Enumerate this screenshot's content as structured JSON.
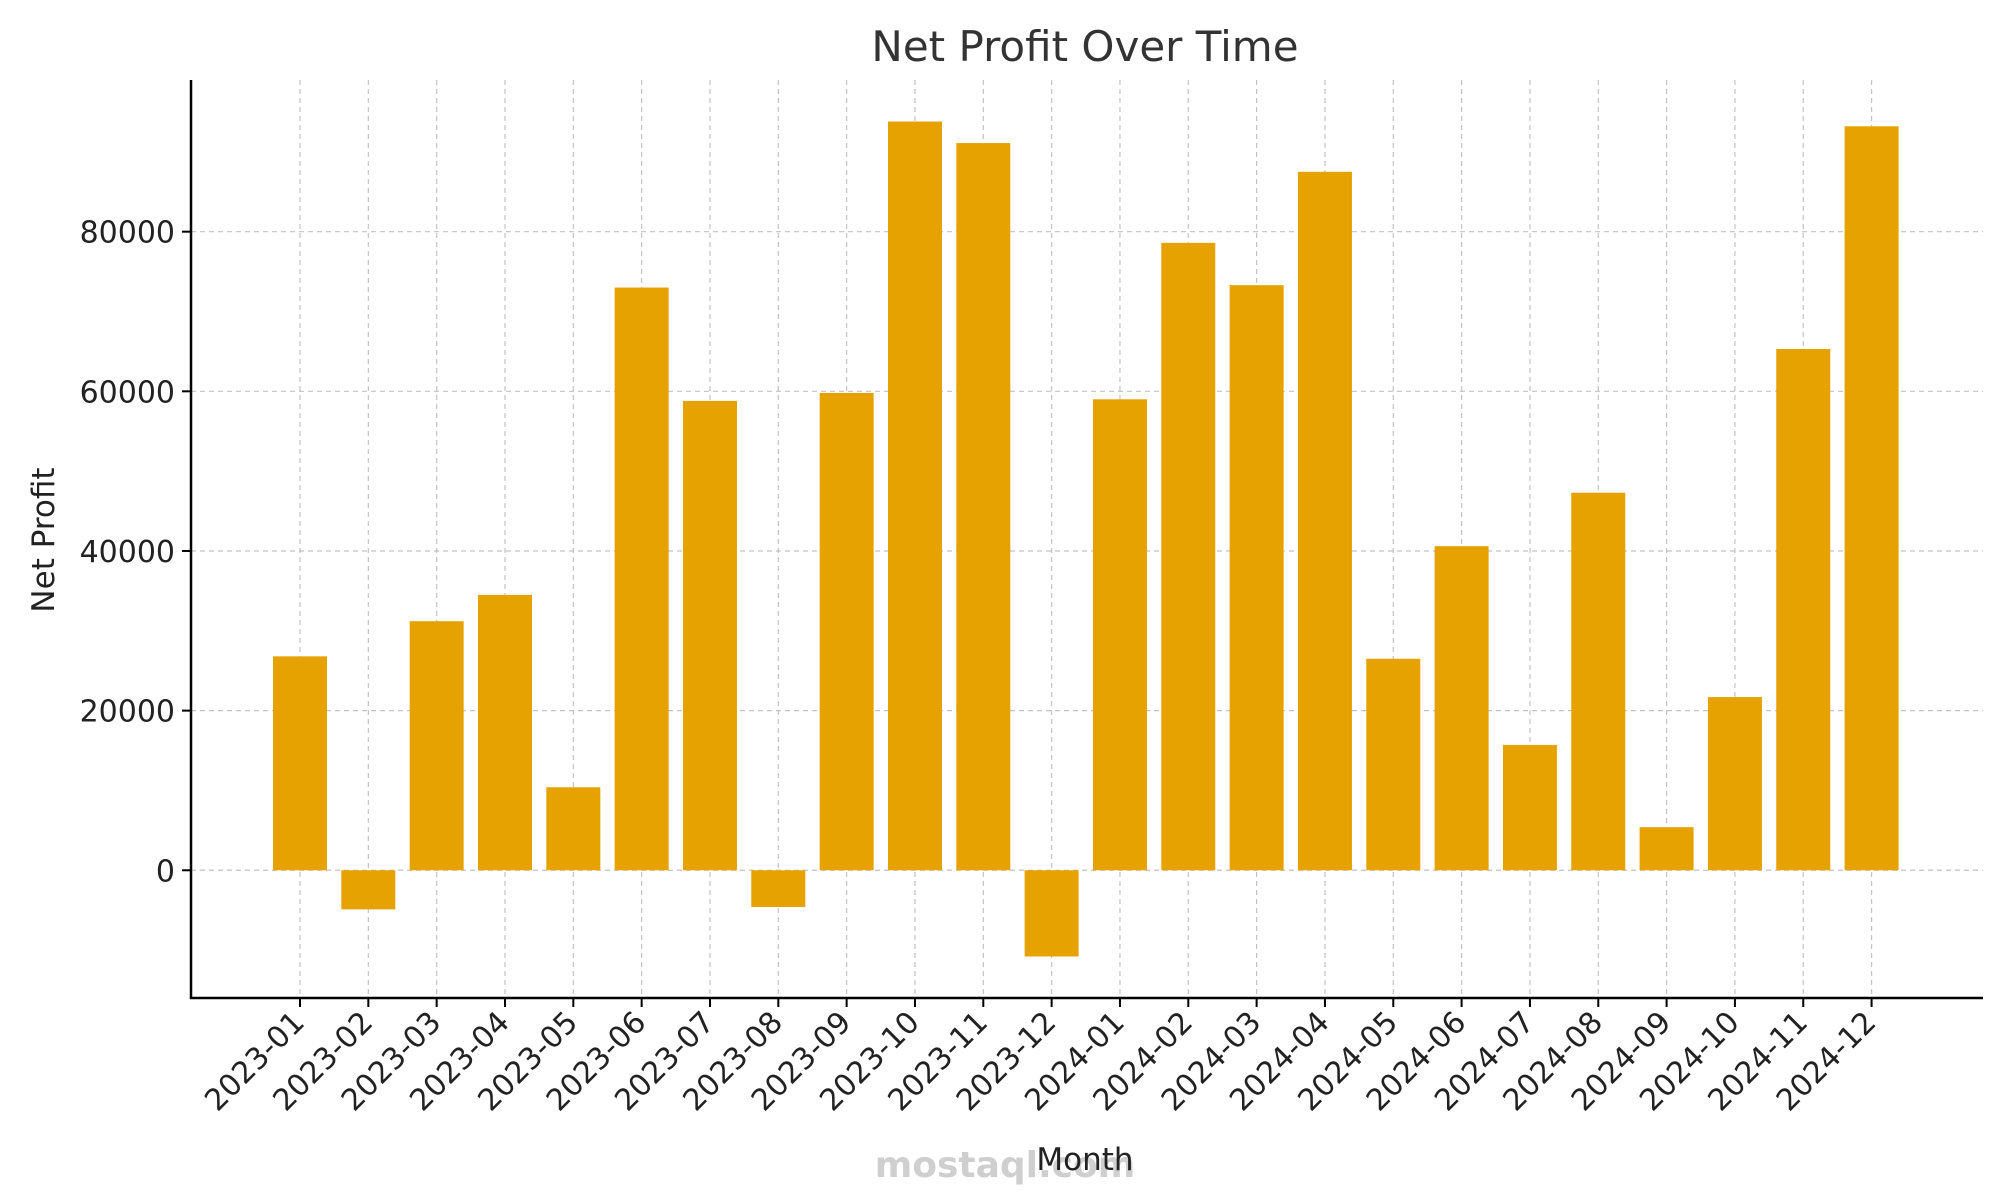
{
  "chart_data": {
    "type": "bar",
    "title": "Net Profit Over Time",
    "xlabel": "Month",
    "ylabel": "Net Profit",
    "categories": [
      "2023-01",
      "2023-02",
      "2023-03",
      "2023-04",
      "2023-05",
      "2023-06",
      "2023-07",
      "2023-08",
      "2023-09",
      "2023-10",
      "2023-11",
      "2023-12",
      "2024-01",
      "2024-02",
      "2024-03",
      "2024-04",
      "2024-05",
      "2024-06",
      "2024-07",
      "2024-08",
      "2024-09",
      "2024-10",
      "2024-11",
      "2024-12"
    ],
    "values": [
      26800,
      -4900,
      31200,
      34500,
      10400,
      73000,
      58800,
      -4600,
      59800,
      93800,
      91100,
      -10800,
      59000,
      78600,
      73300,
      87500,
      26500,
      40600,
      15700,
      47300,
      5400,
      21700,
      65300,
      93200
    ],
    "ylim": [
      -16000,
      99000
    ],
    "yticks": [
      0,
      20000,
      40000,
      60000,
      80000
    ],
    "grid": true,
    "bar_color": "#E5A200"
  },
  "watermark": "mostaql.com"
}
